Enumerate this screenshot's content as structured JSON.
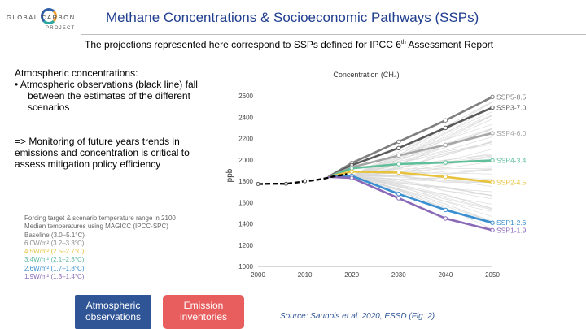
{
  "logo": {
    "text": "GLOBAL CARBON",
    "sub": "PROJECT"
  },
  "title": "Methane Concentrations & Socioeconomic Pathways (SSPs)",
  "subtitle": {
    "pre": "The projections represented here correspond to SSPs defined for IPCC 6",
    "sup": "th",
    "post": " Assessment Report"
  },
  "text_a": {
    "heading": "Atmospheric concentrations:",
    "bullet": "• Atmospheric observations (black line) fall between the estimates of the different scenarios"
  },
  "text_b": "=> Monitoring of future years trends in emissions and concentration is critical to assess mitigation policy efficiency",
  "legend": {
    "line1": "Forcing target & scenario temperature range in 2100",
    "line2": "Median temperatures using MAGICC (IPCC-SPC)",
    "items": [
      {
        "label": "Baseline (3.0–5.1°C)",
        "color": "#6d6d6d"
      },
      {
        "label": "6.0W/m² (3.2–3.3°C)",
        "color": "#8a8a8a"
      },
      {
        "label": "4.5W/m² (2.5–2.7°C)",
        "color": "#e8c23a"
      },
      {
        "label": "3.4W/m² (2.1–2.3°C)",
        "color": "#5fb8a0"
      },
      {
        "label": "2.6W/m² (1.7–1.8°C)",
        "color": "#3a8fd0"
      },
      {
        "label": "1.9W/m² (1.3–1.4°C)",
        "color": "#8a6ab8"
      }
    ]
  },
  "buttons": {
    "observations": "Atmospheric observations",
    "inventories": "Emission inventories"
  },
  "source": "Source: Saunois et al. 2020, ESSD (Fig. 2)",
  "chart_data": {
    "type": "line",
    "title": "Concentration (CH₄)",
    "ylabel": "ppb",
    "xlim": [
      2000,
      2050
    ],
    "ylim": [
      1000,
      2600
    ],
    "xticks": [
      2000,
      2010,
      2020,
      2030,
      2040,
      2050
    ],
    "yticks": [
      1000,
      1200,
      1400,
      1600,
      1800,
      2000,
      2200,
      2400,
      2600
    ],
    "observations": {
      "x": [
        2000,
        2003,
        2006,
        2008,
        2010,
        2012,
        2014,
        2016,
        2018,
        2019
      ],
      "y": [
        1773,
        1776,
        1775,
        1786,
        1799,
        1808,
        1823,
        1843,
        1858,
        1866
      ],
      "color": "#000000"
    },
    "series": [
      {
        "name": "SSP5-8.5",
        "color": "#7f7f7f",
        "x": [
          2015,
          2020,
          2030,
          2040,
          2050
        ],
        "y": [
          1840,
          1970,
          2170,
          2370,
          2590
        ]
      },
      {
        "name": "SSP3-7.0",
        "color": "#5a5a5a",
        "x": [
          2015,
          2020,
          2030,
          2040,
          2050
        ],
        "y": [
          1840,
          1950,
          2110,
          2300,
          2490
        ]
      },
      {
        "name": "SSP4-6.0",
        "color": "#a6a6a6",
        "x": [
          2015,
          2020,
          2030,
          2040,
          2050
        ],
        "y": [
          1840,
          1930,
          2040,
          2140,
          2250
        ]
      },
      {
        "name": "SSP4-3.4",
        "color": "#5fbf9a",
        "x": [
          2015,
          2020,
          2030,
          2040,
          2050
        ],
        "y": [
          1840,
          1920,
          1960,
          1975,
          1995
        ]
      },
      {
        "name": "SSP2-4.5",
        "color": "#e8c23a",
        "x": [
          2015,
          2020,
          2030,
          2040,
          2050
        ],
        "y": [
          1840,
          1890,
          1880,
          1840,
          1790
        ]
      },
      {
        "name": "SSP1-2.6",
        "color": "#3a8fd0",
        "x": [
          2015,
          2020,
          2030,
          2040,
          2050
        ],
        "y": [
          1840,
          1850,
          1680,
          1530,
          1410
        ]
      },
      {
        "name": "SSP1-1.9",
        "color": "#8a6ab8",
        "x": [
          2015,
          2020,
          2030,
          2040,
          2050
        ],
        "y": [
          1840,
          1830,
          1640,
          1450,
          1340
        ]
      }
    ],
    "ensemble": {
      "color": "#d9d9d9",
      "start": [
        2020,
        1850
      ],
      "end_min": 1350,
      "end_max": 2550,
      "count": 60
    },
    "grid": false,
    "legend": "right"
  }
}
